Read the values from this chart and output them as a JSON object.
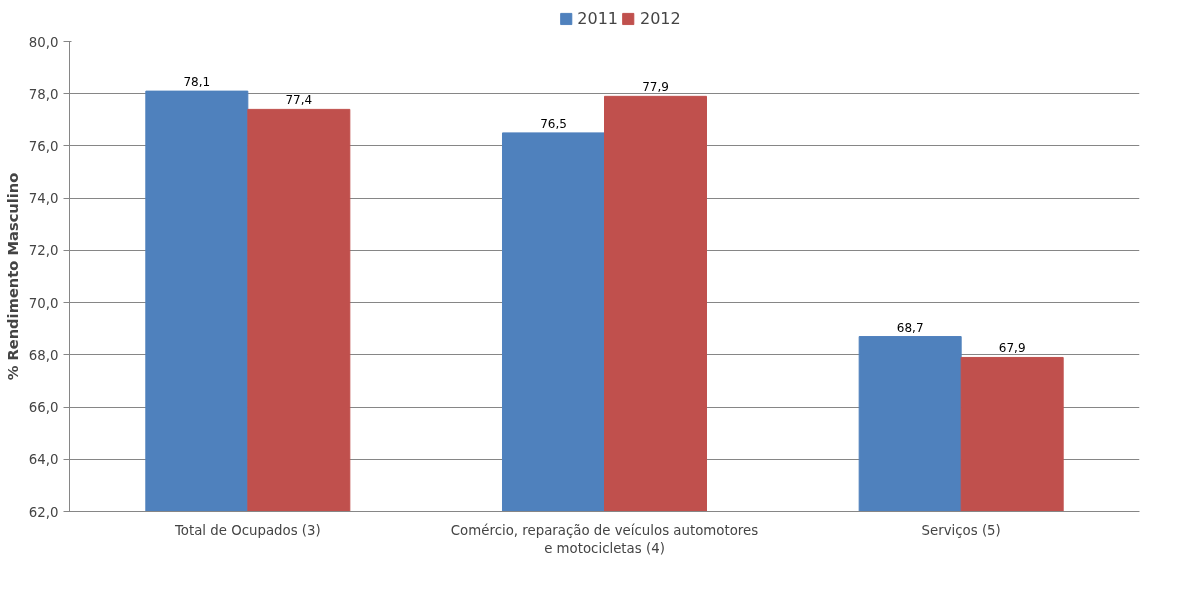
{
  "chart_data": {
    "type": "bar",
    "ylabel": "% Rendimento Masculino",
    "categories": [
      "Total de Ocupados (3)",
      "Comércio, reparação de veículos automotores e motocicletas (4)",
      "Serviços (5)"
    ],
    "series": [
      {
        "name": "2011",
        "color": "#4f81bd",
        "values": [
          78.1,
          76.5,
          68.7
        ]
      },
      {
        "name": "2012",
        "color": "#c0504d",
        "values": [
          77.4,
          77.9,
          67.9
        ]
      }
    ],
    "ylim": [
      62,
      80
    ],
    "yticks": [
      {
        "value": 62,
        "label": "62,0"
      },
      {
        "value": 64,
        "label": "64,0"
      },
      {
        "value": 66,
        "label": "66,0"
      },
      {
        "value": 68,
        "label": "68,0"
      },
      {
        "value": 70,
        "label": "70,0"
      },
      {
        "value": 72,
        "label": "72,0"
      },
      {
        "value": 74,
        "label": "74,0"
      },
      {
        "value": 76,
        "label": "76,0"
      },
      {
        "value": 78,
        "label": "78,0"
      },
      {
        "value": 80,
        "label": "80,0"
      }
    ],
    "value_labels": [
      [
        "78,1",
        "76,5",
        "68,7"
      ],
      [
        "77,4",
        "77,9",
        "67,9"
      ]
    ],
    "grid": "y",
    "legend": "top"
  }
}
